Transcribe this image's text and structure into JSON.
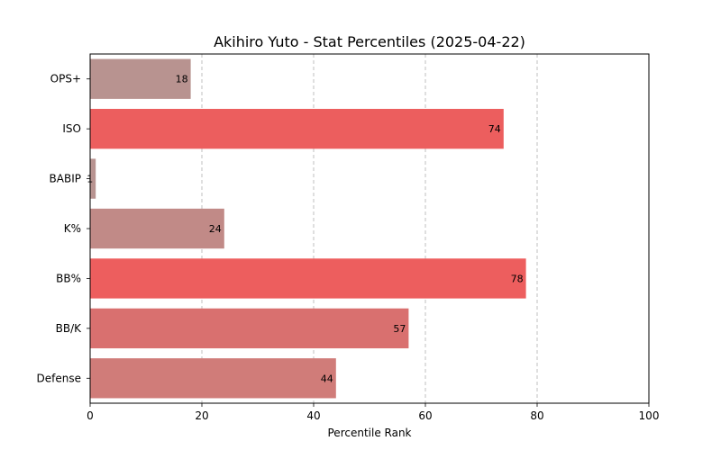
{
  "chart_data": {
    "type": "bar",
    "orientation": "horizontal",
    "title": "Akihiro Yuto - Stat Percentiles (2025-04-22)",
    "xlabel": "Percentile Rank",
    "ylabel": "",
    "xlim": [
      0,
      100
    ],
    "xticks": [
      "0",
      "20",
      "40",
      "60",
      "80",
      "100"
    ],
    "grid": "x-axis dashed",
    "categories": [
      "OPS+",
      "ISO",
      "BABIP",
      "K%",
      "BB%",
      "BB/K",
      "Defense"
    ],
    "values": [
      18,
      74,
      1,
      24,
      78,
      57,
      44
    ],
    "value_labels": [
      "18",
      "74",
      "1",
      "24",
      "78",
      "57",
      "44"
    ],
    "colors": [
      "#b89390",
      "#ec5e5e",
      "#b89390",
      "#c18a87",
      "#ed5e5e",
      "#d9706f",
      "#d07c79"
    ]
  }
}
